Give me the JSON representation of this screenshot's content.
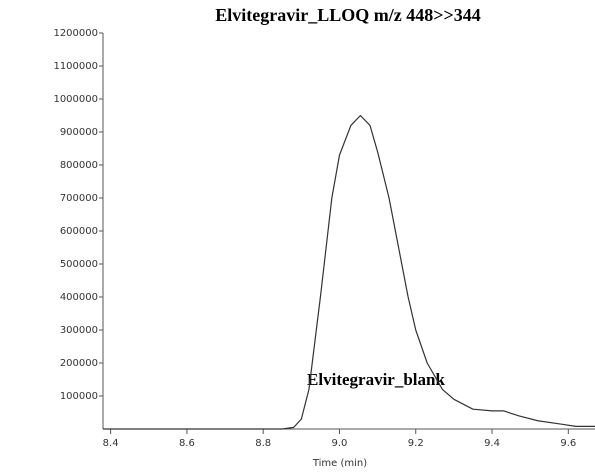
{
  "chart_data": {
    "type": "line",
    "title": "Elvitegravir_LLOQ  m/z 448>>344",
    "annotation": "Elvitegravir_blank",
    "x_label": "Time (min)",
    "x": [
      8.38,
      8.5,
      8.6,
      8.7,
      8.8,
      8.85,
      8.88,
      8.9,
      8.92,
      8.95,
      8.98,
      9.0,
      9.03,
      9.055,
      9.08,
      9.1,
      9.13,
      9.15,
      9.18,
      9.2,
      9.23,
      9.27,
      9.3,
      9.35,
      9.4,
      9.43,
      9.47,
      9.52,
      9.58,
      9.62,
      9.67
    ],
    "values": [
      0,
      0,
      0,
      0,
      0,
      0,
      5000,
      30000,
      120000,
      400000,
      700000,
      830000,
      920000,
      950000,
      920000,
      840000,
      700000,
      580000,
      400000,
      300000,
      200000,
      120000,
      90000,
      60000,
      55000,
      55000,
      40000,
      25000,
      15000,
      8000,
      8000
    ],
    "color": "#333333",
    "xlim": [
      8.38,
      9.67
    ],
    "xticks": [
      8.4,
      8.6,
      8.8,
      {
        "value": 9,
        "label": "9.0"
      },
      9.2,
      9.4,
      9.6
    ],
    "ylim": [
      0,
      1200000
    ],
    "yticks": [
      100000,
      200000,
      300000,
      400000,
      500000,
      600000,
      700000,
      800000,
      900000,
      1000000,
      1100000,
      1200000
    ]
  }
}
